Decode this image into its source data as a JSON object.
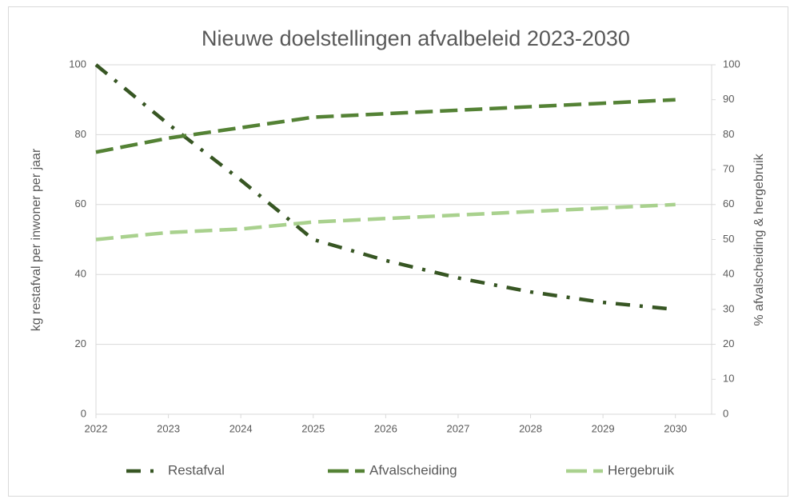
{
  "chart_data": {
    "type": "line",
    "title": "Nieuwe doelstellingen afvalbeleid 2023-2030",
    "ylabel": "kg restafval per inwoner per jaar",
    "y2label": "% afvalscheiding & hergebruik",
    "x": [
      2022,
      2023,
      2024,
      2025,
      2026,
      2027,
      2028,
      2029,
      2030
    ],
    "xlim": [
      2022,
      2030.5
    ],
    "xticks": [
      2022,
      2023,
      2024,
      2025,
      2026,
      2027,
      2028,
      2029,
      2030
    ],
    "ylim": [
      0,
      100
    ],
    "yticks": [
      0,
      20,
      40,
      60,
      80,
      100
    ],
    "y2lim": [
      0,
      100
    ],
    "y2ticks": [
      0,
      10,
      20,
      30,
      40,
      50,
      60,
      70,
      80,
      90,
      100
    ],
    "grid": true,
    "legend": "bottom",
    "series": [
      {
        "name": "Restafval",
        "color": "#375623",
        "dash": "dashdot",
        "values": [
          100,
          83,
          67,
          50,
          44,
          39,
          35,
          32,
          30
        ]
      },
      {
        "name": "Afvalscheiding",
        "color": "#548235",
        "dash": "dash",
        "axis": "y2",
        "values": [
          75,
          79,
          82,
          85,
          86,
          87,
          88,
          89,
          90
        ]
      },
      {
        "name": "Hergebruik",
        "color": "#a9d18e",
        "dash": "dash",
        "axis": "y2",
        "values": [
          50,
          52,
          53,
          55,
          56,
          57,
          58,
          59,
          60
        ]
      }
    ]
  }
}
